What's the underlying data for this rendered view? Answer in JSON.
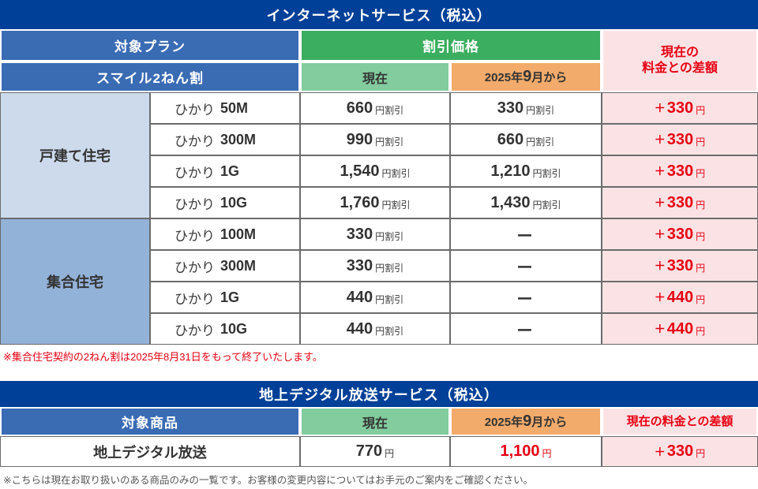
{
  "colors": {
    "title_bg": "#004098",
    "header_blue": "#3a6cb4",
    "green": "#3bae5f",
    "light_green": "#82cc9e",
    "orange": "#f2ab6b",
    "pink": "#fbe3e5",
    "group_light_blue": "#ccdaec",
    "group_mid_blue": "#93b2d8",
    "accent_red": "#e60012"
  },
  "table1": {
    "title": "インターネットサービス（税込）",
    "header": {
      "target_plan": "対象プラン",
      "plan_label": "スマイル2ねん割",
      "discount_price": "割引価格",
      "current": "現在",
      "sept_year": "2025年",
      "sept_big": "9",
      "sept_rest": "月から",
      "diff_line1": "現在の",
      "diff_line2": "料金との差額"
    },
    "groups": [
      {
        "name": "戸建て住宅",
        "rows": [
          {
            "prefix": "ひかり",
            "speed": "50M",
            "cur": "660",
            "cur_unit": "円割引",
            "sept": "330",
            "sept_unit": "円割引",
            "sign": "＋",
            "diff": "330",
            "diff_unit": "円"
          },
          {
            "prefix": "ひかり",
            "speed": "300M",
            "cur": "990",
            "cur_unit": "円割引",
            "sept": "660",
            "sept_unit": "円割引",
            "sign": "＋",
            "diff": "330",
            "diff_unit": "円"
          },
          {
            "prefix": "ひかり",
            "speed": "1G",
            "cur": "1,540",
            "cur_unit": "円割引",
            "sept": "1,210",
            "sept_unit": "円割引",
            "sign": "＋",
            "diff": "330",
            "diff_unit": "円"
          },
          {
            "prefix": "ひかり",
            "speed": "10G",
            "cur": "1,760",
            "cur_unit": "円割引",
            "sept": "1,430",
            "sept_unit": "円割引",
            "sign": "＋",
            "diff": "330",
            "diff_unit": "円"
          }
        ]
      },
      {
        "name": "集合住宅",
        "rows": [
          {
            "prefix": "ひかり",
            "speed": "100M",
            "cur": "330",
            "cur_unit": "円割引",
            "sept": "ー",
            "sept_unit": "",
            "sign": "＋",
            "diff": "330",
            "diff_unit": "円"
          },
          {
            "prefix": "ひかり",
            "speed": "300M",
            "cur": "330",
            "cur_unit": "円割引",
            "sept": "ー",
            "sept_unit": "",
            "sign": "＋",
            "diff": "330",
            "diff_unit": "円"
          },
          {
            "prefix": "ひかり",
            "speed": "1G",
            "cur": "440",
            "cur_unit": "円割引",
            "sept": "ー",
            "sept_unit": "",
            "sign": "＋",
            "diff": "440",
            "diff_unit": "円"
          },
          {
            "prefix": "ひかり",
            "speed": "10G",
            "cur": "440",
            "cur_unit": "円割引",
            "sept": "ー",
            "sept_unit": "",
            "sign": "＋",
            "diff": "440",
            "diff_unit": "円"
          }
        ]
      }
    ]
  },
  "note1": "※集合住宅契約の2ねん割は2025年8月31日をもって終了いたします。",
  "table2": {
    "title": "地上デジタル放送サービス（税込）",
    "header": {
      "product": "対象商品",
      "current": "現在",
      "sept_year": "2025年",
      "sept_big": "9",
      "sept_rest": "月から",
      "diff": "現在の料金との差額"
    },
    "row": {
      "product": "地上デジタル放送",
      "cur": "770",
      "cur_unit": "円",
      "sept": "1,100",
      "sept_unit": "円",
      "sign": "＋",
      "diff": "330",
      "diff_unit": "円"
    }
  },
  "note2": "※こちらは現在お取り扱いのある商品のみの一覧です。お客様の変更内容についてはお手元のご案内をご確認ください。"
}
